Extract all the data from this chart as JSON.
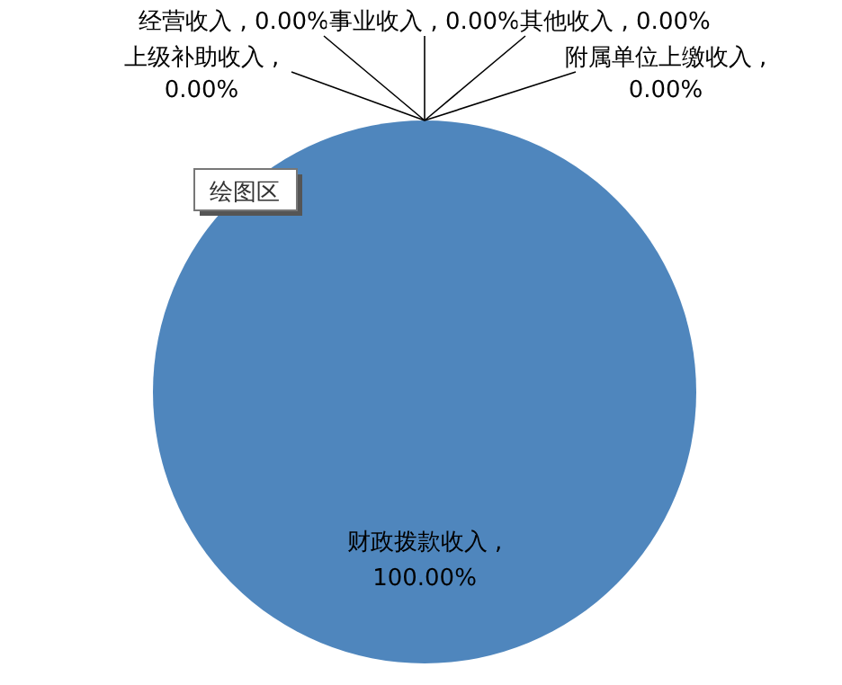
{
  "chart_data": {
    "type": "pie",
    "categories": [
      "财政拨款收入",
      "上级补助收入",
      "经营收入",
      "事业收入",
      "其他收入",
      "附属单位上缴收入"
    ],
    "values": [
      100,
      0,
      0,
      0,
      0,
      0
    ],
    "value_labels": [
      ", 100.00%",
      ", 0.00%",
      ", 0.00%",
      ", 0.00%",
      ", 0.00%",
      ", 0.00%"
    ],
    "colors": [
      "#4f86bd",
      "#c0504d",
      "#9bbb59",
      "#8064a2",
      "#4bacc6",
      "#f79646"
    ],
    "legend": false,
    "annotations": [
      "绘图区"
    ]
  }
}
